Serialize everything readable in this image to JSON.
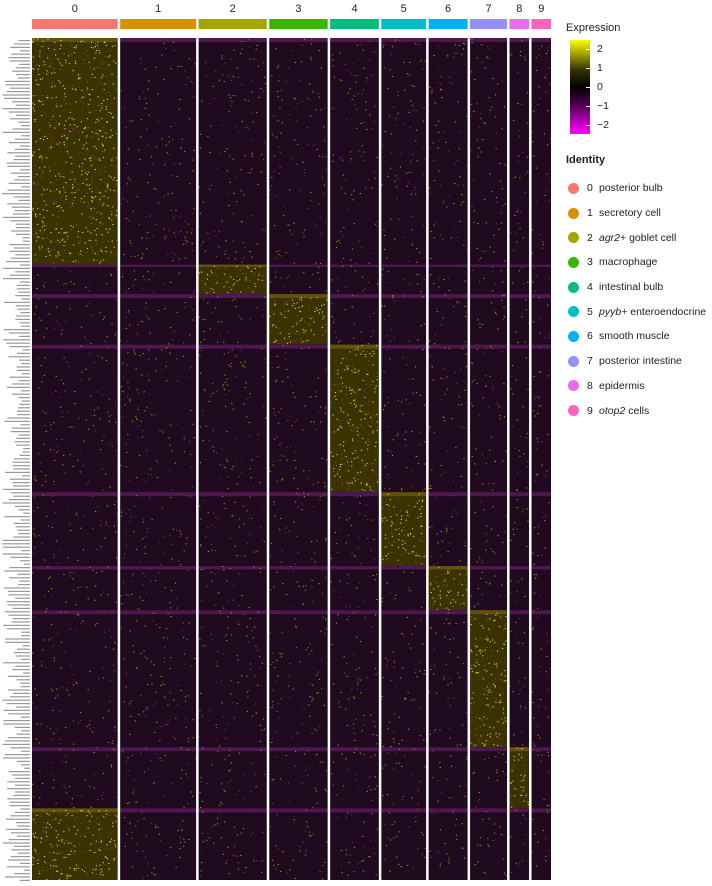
{
  "chart_data": {
    "type": "heatmap",
    "title": "",
    "clusters": [
      {
        "id": "0",
        "label": "posterior bulb",
        "color": "#F8766D"
      },
      {
        "id": "1",
        "label": "secretory cell",
        "color": "#D89000"
      },
      {
        "id": "2",
        "label": "agr2+ goblet cell",
        "label_italic": "agr2",
        "label_rest": "+ goblet cell",
        "color": "#A3A500"
      },
      {
        "id": "3",
        "label": "macrophage",
        "color": "#39B600"
      },
      {
        "id": "4",
        "label": "intestinal bulb",
        "color": "#00BF7D"
      },
      {
        "id": "5",
        "label": "pyyb+ enteroendocrine",
        "label_italic": "pyyb",
        "label_rest": "+ enteroendocrine",
        "color": "#00BFC4"
      },
      {
        "id": "6",
        "label": "smooth muscle",
        "color": "#00B0F6"
      },
      {
        "id": "7",
        "label": "posterior intestine",
        "color": "#9590FF"
      },
      {
        "id": "8",
        "label": "epidermis",
        "color": "#E76BF3"
      },
      {
        "id": "9",
        "label": "otop2 cells",
        "label_italic": "otop2",
        "label_rest": " cells",
        "color": "#FF62BC"
      }
    ],
    "cluster_relative_widths": [
      88,
      78,
      70,
      60,
      50,
      46,
      40,
      38,
      20,
      20
    ],
    "gene_block_relative_heights": [
      215,
      28,
      48,
      140,
      70,
      42,
      130,
      58,
      68
    ],
    "block_peak_cluster": [
      0,
      2,
      3,
      4,
      5,
      6,
      7,
      8,
      0
    ],
    "expression_scale": {
      "title": "Expression",
      "ticks": [
        2,
        1,
        0,
        -1,
        -2
      ],
      "min": -2.5,
      "max": 2.5,
      "high_color": "#FFFF00",
      "mid_color": "#000000",
      "low_color": "#FF00FF"
    },
    "identity_legend_title": "Identity"
  }
}
